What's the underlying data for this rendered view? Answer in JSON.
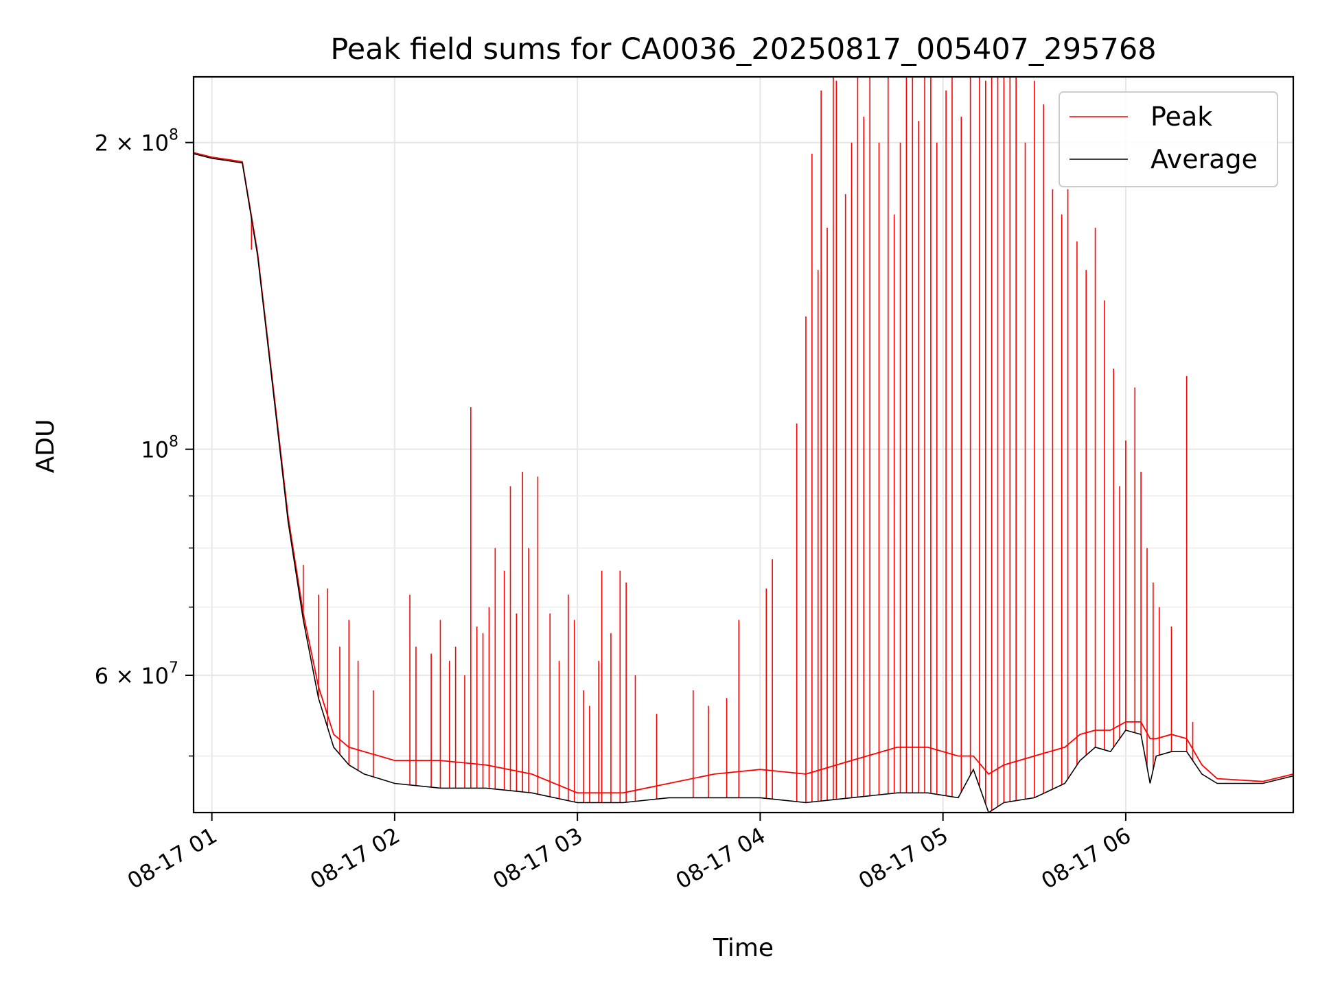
{
  "chart_data": {
    "type": "line",
    "title": "Peak field sums for CA0036_20250817_005407_295768",
    "xlabel": "Time",
    "ylabel": "ADU",
    "yscale": "log",
    "xlim": [
      "2025-08-17 00:54",
      "2025-08-17 06:55"
    ],
    "ylim": [
      44000000,
      232000000
    ],
    "grid": true,
    "legend_position": "top-right",
    "x_ticks": [
      "08-17 01",
      "08-17 02",
      "08-17 03",
      "08-17 04",
      "08-17 05",
      "08-17 06"
    ],
    "y_ticks": [
      {
        "value": 200000000,
        "base": "2 × 10",
        "exp": "8"
      },
      {
        "value": 100000000,
        "base": "10",
        "exp": "8"
      },
      {
        "value": 60000000,
        "base": "6 × 10",
        "exp": "7"
      }
    ],
    "series": [
      {
        "name": "Average",
        "color": "#000000",
        "x": [
          "00:54",
          "01:00",
          "01:05",
          "01:10",
          "01:15",
          "01:20",
          "01:25",
          "01:30",
          "01:35",
          "01:40",
          "01:45",
          "01:50",
          "01:55",
          "02:00",
          "02:15",
          "02:30",
          "02:45",
          "03:00",
          "03:15",
          "03:30",
          "03:45",
          "04:00",
          "04:15",
          "04:30",
          "04:45",
          "04:55",
          "05:05",
          "05:10",
          "05:15",
          "05:20",
          "05:30",
          "05:40",
          "05:45",
          "05:50",
          "05:55",
          "06:00",
          "06:05",
          "06:08",
          "06:10",
          "06:15",
          "06:20",
          "06:25",
          "06:30",
          "06:45",
          "06:55"
        ],
        "values": [
          195000000,
          193000000,
          192000000,
          191000000,
          155000000,
          115000000,
          85000000,
          68000000,
          57000000,
          51000000,
          49000000,
          48000000,
          47500000,
          47000000,
          46500000,
          46500000,
          46000000,
          45000000,
          45000000,
          45500000,
          45500000,
          45500000,
          45000000,
          45500000,
          46000000,
          46000000,
          45500000,
          48500000,
          44000000,
          45000000,
          45500000,
          47000000,
          49500000,
          51000000,
          50500000,
          53000000,
          52500000,
          47000000,
          50000000,
          50500000,
          50500000,
          48000000,
          47000000,
          47000000,
          47800000
        ]
      },
      {
        "name": "Peak",
        "color": "#ff0000",
        "x": [
          "00:54",
          "01:00",
          "01:05",
          "01:10",
          "01:15",
          "01:20",
          "01:25",
          "01:30",
          "01:35",
          "01:40",
          "01:45",
          "01:50",
          "01:55",
          "02:00",
          "02:15",
          "02:30",
          "02:45",
          "03:00",
          "03:15",
          "03:30",
          "03:45",
          "04:00",
          "04:15",
          "04:30",
          "04:45",
          "04:55",
          "05:05",
          "05:10",
          "05:15",
          "05:20",
          "05:30",
          "05:40",
          "05:45",
          "05:50",
          "05:55",
          "06:00",
          "06:05",
          "06:08",
          "06:10",
          "06:15",
          "06:20",
          "06:25",
          "06:30",
          "06:45",
          "06:55"
        ],
        "values": [
          195500000,
          193500000,
          192500000,
          191500000,
          156000000,
          116000000,
          86000000,
          69000000,
          58500000,
          52500000,
          51000000,
          50500000,
          50000000,
          49500000,
          49500000,
          49000000,
          48000000,
          46000000,
          46000000,
          47000000,
          48000000,
          48500000,
          48000000,
          49500000,
          51000000,
          51000000,
          50000000,
          50000000,
          48000000,
          49000000,
          50000000,
          51000000,
          52500000,
          53000000,
          53000000,
          54000000,
          54000000,
          52000000,
          52000000,
          52500000,
          52000000,
          49000000,
          47500000,
          47200000,
          48000000
        ],
        "spikes": [
          [
            "01:13",
            157000000
          ],
          [
            "01:25",
            86000000
          ],
          [
            "01:30",
            77000000
          ],
          [
            "01:35",
            72000000
          ],
          [
            "01:38",
            73000000
          ],
          [
            "01:42",
            64000000
          ],
          [
            "01:45",
            68000000
          ],
          [
            "01:48",
            62000000
          ],
          [
            "01:53",
            58000000
          ],
          [
            "02:05",
            72000000
          ],
          [
            "02:07",
            64000000
          ],
          [
            "02:12",
            63000000
          ],
          [
            "02:15",
            68000000
          ],
          [
            "02:18",
            62000000
          ],
          [
            "02:20",
            64000000
          ],
          [
            "02:23",
            60000000
          ],
          [
            "02:25",
            110000000
          ],
          [
            "02:27",
            67000000
          ],
          [
            "02:29",
            66000000
          ],
          [
            "02:31",
            70000000
          ],
          [
            "02:33",
            80000000
          ],
          [
            "02:36",
            76000000
          ],
          [
            "02:38",
            92000000
          ],
          [
            "02:40",
            69000000
          ],
          [
            "02:42",
            95000000
          ],
          [
            "02:44",
            80000000
          ],
          [
            "02:47",
            94000000
          ],
          [
            "02:51",
            69000000
          ],
          [
            "02:54",
            62000000
          ],
          [
            "02:57",
            72000000
          ],
          [
            "02:59",
            68000000
          ],
          [
            "03:02",
            58000000
          ],
          [
            "03:04",
            56000000
          ],
          [
            "03:07",
            62000000
          ],
          [
            "03:08",
            76000000
          ],
          [
            "03:11",
            66000000
          ],
          [
            "03:14",
            76000000
          ],
          [
            "03:16",
            74000000
          ],
          [
            "03:19",
            60000000
          ],
          [
            "03:26",
            55000000
          ],
          [
            "03:38",
            58000000
          ],
          [
            "03:43",
            56000000
          ],
          [
            "03:49",
            57000000
          ],
          [
            "03:53",
            68000000
          ],
          [
            "04:02",
            73000000
          ],
          [
            "04:04",
            78000000
          ],
          [
            "04:12",
            106000000
          ],
          [
            "04:15",
            135000000
          ],
          [
            "04:17",
            195000000
          ],
          [
            "04:19",
            150000000
          ],
          [
            "04:20",
            225000000
          ],
          [
            "04:22",
            165000000
          ],
          [
            "04:24",
            240000000
          ],
          [
            "04:25",
            230000000
          ],
          [
            "04:28",
            178000000
          ],
          [
            "04:30",
            200000000
          ],
          [
            "04:32",
            242000000
          ],
          [
            "04:34",
            212000000
          ],
          [
            "04:36",
            248000000
          ],
          [
            "04:39",
            200000000
          ],
          [
            "04:42",
            250000000
          ],
          [
            "04:44",
            170000000
          ],
          [
            "04:46",
            200000000
          ],
          [
            "04:48",
            240000000
          ],
          [
            "04:50",
            248000000
          ],
          [
            "04:52",
            210000000
          ],
          [
            "04:54",
            250000000
          ],
          [
            "04:56",
            236000000
          ],
          [
            "04:58",
            200000000
          ],
          [
            "05:01",
            225000000
          ],
          [
            "05:03",
            250000000
          ],
          [
            "05:06",
            212000000
          ],
          [
            "05:09",
            240000000
          ],
          [
            "05:12",
            250000000
          ],
          [
            "05:14",
            230000000
          ],
          [
            "05:16",
            245000000
          ],
          [
            "05:18",
            250000000
          ],
          [
            "05:20",
            235000000
          ],
          [
            "05:22",
            250000000
          ],
          [
            "05:24",
            245000000
          ],
          [
            "05:27",
            200000000
          ],
          [
            "05:30",
            230000000
          ],
          [
            "05:33",
            218000000
          ],
          [
            "05:36",
            180000000
          ],
          [
            "05:39",
            170000000
          ],
          [
            "05:41",
            180000000
          ],
          [
            "05:44",
            160000000
          ],
          [
            "05:47",
            150000000
          ],
          [
            "05:50",
            165000000
          ],
          [
            "05:53",
            140000000
          ],
          [
            "05:56",
            120000000
          ],
          [
            "05:58",
            92000000
          ],
          [
            "06:00",
            102000000
          ],
          [
            "06:03",
            115000000
          ],
          [
            "06:05",
            95000000
          ],
          [
            "06:07",
            80000000
          ],
          [
            "06:09",
            74000000
          ],
          [
            "06:11",
            70000000
          ],
          [
            "06:15",
            67000000
          ],
          [
            "06:20",
            118000000
          ],
          [
            "06:22",
            54000000
          ]
        ]
      }
    ]
  }
}
